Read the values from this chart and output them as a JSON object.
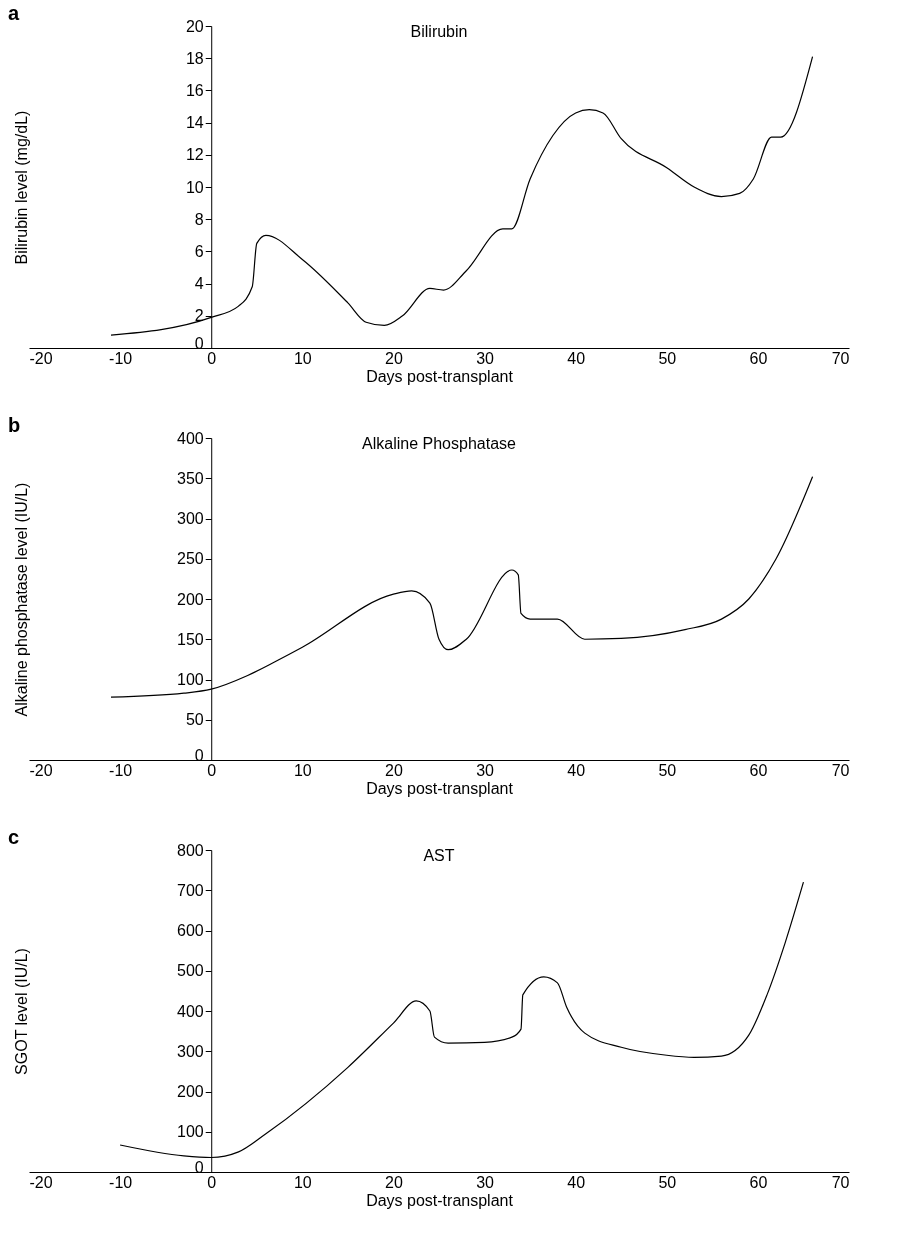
{
  "chart_data": [
    {
      "type": "line",
      "title": "Bilirubin",
      "xlabel": "Days post-transplant",
      "ylabel": "Bilirubin level (mg/dL)",
      "annotations": [
        "a"
      ],
      "xlim": [
        -20,
        70
      ],
      "xticks": [
        -20,
        -10,
        0,
        10,
        20,
        30,
        40,
        50,
        60,
        70
      ],
      "ylim": [
        0,
        20
      ],
      "yticks": [
        0,
        2,
        4,
        6,
        8,
        10,
        12,
        14,
        16,
        18,
        20
      ],
      "grid": false,
      "marker": "none",
      "line_style": "solid",
      "x": [
        -11,
        0,
        3,
        4.5,
        5,
        6,
        10,
        15,
        17,
        19,
        21,
        24,
        25.5,
        28,
        32,
        33,
        35,
        37.5,
        40,
        41.5,
        43,
        45,
        50,
        53,
        56,
        58,
        59.5,
        61.5,
        62.5,
        66
      ],
      "series": [
        {
          "color": "#000000",
          "values": [
            0.8,
            1.9,
            2.6,
            3.8,
            6.5,
            7.0,
            5.5,
            2.8,
            1.6,
            1.4,
            2.0,
            3.7,
            3.6,
            4.8,
            7.4,
            7.4,
            10.5,
            13.2,
            14.6,
            14.8,
            14.6,
            13.0,
            11.2,
            10.0,
            9.4,
            9.6,
            10.5,
            13.1,
            13.1,
            18.1
          ]
        }
      ]
    },
    {
      "type": "line",
      "title": "Alkaline Phosphatase",
      "xlabel": "Days post-transplant",
      "ylabel": "Alkaline phosphatase level (IU/L)",
      "annotations": [
        "b"
      ],
      "xlim": [
        -20,
        70
      ],
      "xticks": [
        -20,
        -10,
        0,
        10,
        20,
        30,
        40,
        50,
        60,
        70
      ],
      "ylim": [
        0,
        400
      ],
      "yticks": [
        0,
        50,
        100,
        150,
        200,
        250,
        300,
        350,
        400
      ],
      "grid": false,
      "marker": "none",
      "line_style": "solid",
      "x": [
        -11,
        -3,
        0,
        4,
        7,
        10,
        20,
        22,
        24,
        25,
        26,
        28,
        33,
        33.7,
        34,
        35,
        38,
        41,
        45,
        52,
        56,
        59,
        62,
        66
      ],
      "series": [
        {
          "color": "#000000",
          "values": [
            78,
            83,
            88,
            105,
            122,
            140,
            206,
            210,
            195,
            150,
            137,
            150,
            236,
            230,
            182,
            175,
            175,
            150,
            151,
            162,
            175,
            200,
            250,
            352
          ]
        }
      ]
    },
    {
      "type": "line",
      "title": "AST",
      "xlabel": "Days post-transplant",
      "ylabel": "SGOT level (IU/L)",
      "annotations": [
        "c"
      ],
      "xlim": [
        -20,
        70
      ],
      "xticks": [
        -20,
        -10,
        0,
        10,
        20,
        30,
        40,
        50,
        60,
        70
      ],
      "ylim": [
        0,
        800
      ],
      "yticks": [
        0,
        100,
        200,
        300,
        400,
        500,
        600,
        700,
        800
      ],
      "grid": false,
      "marker": "none",
      "line_style": "solid",
      "x": [
        -10,
        -3,
        0,
        3,
        6,
        15,
        20,
        22.5,
        24,
        24.5,
        26,
        30,
        33,
        34,
        34.2,
        36.5,
        38,
        39,
        41,
        45,
        50,
        53,
        56,
        59,
        61,
        63,
        65
      ],
      "series": [
        {
          "color": "#000000",
          "values": [
            67,
            40,
            36,
            50,
            95,
            260,
            370,
            425,
            400,
            335,
            320,
            322,
            335,
            355,
            440,
            485,
            470,
            410,
            345,
            310,
            290,
            285,
            288,
            340,
            440,
            570,
            720
          ]
        }
      ]
    }
  ]
}
